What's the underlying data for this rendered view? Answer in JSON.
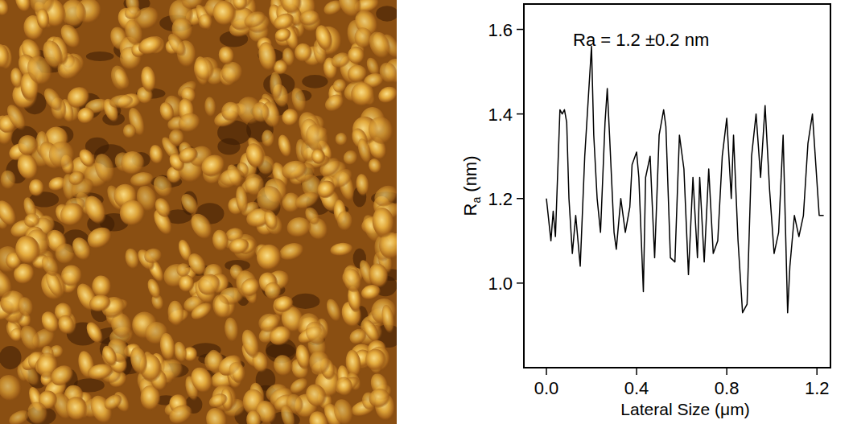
{
  "chart_data": {
    "type": "line",
    "ylabel": "Ra (nm)",
    "xlabel": "Lateral Size (μm)",
    "annotation": "Ra = 1.2 ±0.2 nm",
    "x": [
      0,
      0.01,
      0.02,
      0.03,
      0.04,
      0.06,
      0.07,
      0.08,
      0.09,
      0.1,
      0.115,
      0.13,
      0.15,
      0.17,
      0.2,
      0.21,
      0.225,
      0.24,
      0.26,
      0.27,
      0.28,
      0.3,
      0.31,
      0.33,
      0.35,
      0.37,
      0.38,
      0.4,
      0.41,
      0.43,
      0.44,
      0.46,
      0.48,
      0.5,
      0.52,
      0.53,
      0.55,
      0.57,
      0.59,
      0.61,
      0.63,
      0.65,
      0.67,
      0.68,
      0.7,
      0.72,
      0.74,
      0.76,
      0.78,
      0.8,
      0.82,
      0.83,
      0.85,
      0.87,
      0.89,
      0.91,
      0.93,
      0.95,
      0.97,
      0.99,
      1.01,
      1.03,
      1.05,
      1.07,
      1.08,
      1.1,
      1.12,
      1.14,
      1.16,
      1.18,
      1.21,
      1.23
    ],
    "values": [
      1.2,
      1.15,
      1.1,
      1.17,
      1.11,
      1.41,
      1.4,
      1.41,
      1.38,
      1.2,
      1.07,
      1.16,
      1.04,
      1.3,
      1.56,
      1.35,
      1.2,
      1.12,
      1.38,
      1.46,
      1.35,
      1.12,
      1.08,
      1.2,
      1.12,
      1.18,
      1.28,
      1.31,
      1.25,
      0.98,
      1.25,
      1.3,
      1.06,
      1.35,
      1.41,
      1.37,
      1.06,
      1.05,
      1.35,
      1.27,
      1.02,
      1.25,
      1.06,
      1.25,
      1.05,
      1.27,
      1.07,
      1.1,
      1.3,
      1.39,
      1.2,
      1.35,
      1.1,
      0.93,
      0.95,
      1.3,
      1.4,
      1.25,
      1.42,
      1.22,
      1.07,
      1.12,
      1.35,
      0.93,
      1.04,
      1.16,
      1.11,
      1.16,
      1.33,
      1.4,
      1.16,
      1.16
    ],
    "color": "#000000",
    "line_style": "solid",
    "xlim": [
      -0.1,
      1.26
    ],
    "ylim": [
      0.8,
      1.66
    ],
    "xticks": [
      {
        "value": 0,
        "label": "0.0"
      },
      0.4,
      0.8,
      1.2
    ],
    "yticks": [
      {
        "value": 1,
        "label": "1.0"
      },
      1.2,
      1.4,
      1.6
    ],
    "grid": false
  }
}
